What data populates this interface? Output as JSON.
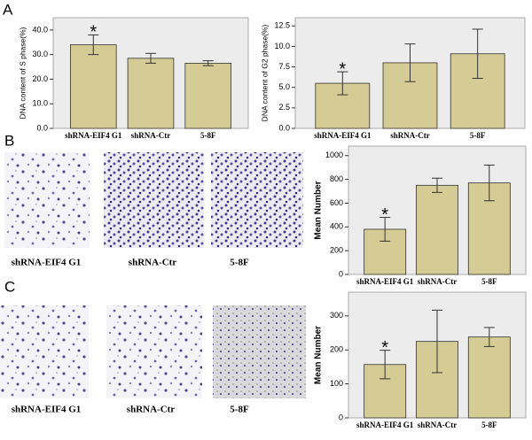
{
  "panels": [
    "A",
    "B",
    "C"
  ],
  "image_captions": [
    [
      "shRNA-EIF4 G1",
      "shRNA-Ctr",
      "5-8F"
    ],
    [
      "shRNA-EIF4 G1",
      "shRNA-Ctr",
      "5-8F"
    ]
  ],
  "chart_data": [
    {
      "type": "bar",
      "y_label": "DNA content of S phase(%)",
      "categories": [
        "shRNA-EIF4 G1",
        "shRNA-Ctr",
        "5-8F"
      ],
      "values": [
        34,
        28.5,
        26.5
      ],
      "errors": [
        4,
        2,
        1
      ],
      "color": "#d4cc94",
      "annotation": "*",
      "ylim": [
        0,
        45
      ],
      "yticks": [
        {
          "value": 0,
          "label": "0.0"
        },
        {
          "value": 10,
          "label": "10.0"
        },
        {
          "value": 20,
          "label": "20.0"
        },
        {
          "value": 30,
          "label": "30.0"
        },
        {
          "value": 40,
          "label": "40.0"
        }
      ]
    },
    {
      "type": "bar",
      "y_label": "DNA content of G2 phase(%)",
      "categories": [
        "shRNA-EIF4 G1",
        "shRNA-Ctr",
        "5-8F"
      ],
      "values": [
        5.5,
        8,
        9.1
      ],
      "errors": [
        1.4,
        2.3,
        3
      ],
      "color": "#d4cc94",
      "annotation": "*",
      "ylim": [
        0,
        13.5
      ],
      "yticks": [
        {
          "value": 0,
          "label": "0.0"
        },
        2.5,
        {
          "value": 5,
          "label": "5.0"
        },
        7.5,
        {
          "value": 10,
          "label": "10.0"
        },
        12.5
      ]
    },
    {
      "type": "bar",
      "y_label": "Mean Number",
      "categories": [
        "shRNA-EIF4 G1",
        "shRNA-Ctr",
        "5-8F"
      ],
      "values": [
        380,
        750,
        770
      ],
      "errors": [
        100,
        60,
        150
      ],
      "color": "#d4cc94",
      "annotation": "*",
      "ylim": [
        0,
        1080
      ],
      "yticks": [
        0,
        200,
        400,
        600,
        800,
        1000
      ]
    },
    {
      "type": "bar",
      "y_label": "Mean Number",
      "categories": [
        "shRNA-EIF4 G1",
        "shRNA-Ctr",
        "5-8F"
      ],
      "values": [
        157,
        225,
        238
      ],
      "errors": [
        42,
        92,
        28
      ],
      "color": "#d4cc94",
      "annotation": "*",
      "ylim": [
        0,
        370
      ],
      "yticks": [
        0,
        100,
        200,
        300
      ]
    }
  ]
}
